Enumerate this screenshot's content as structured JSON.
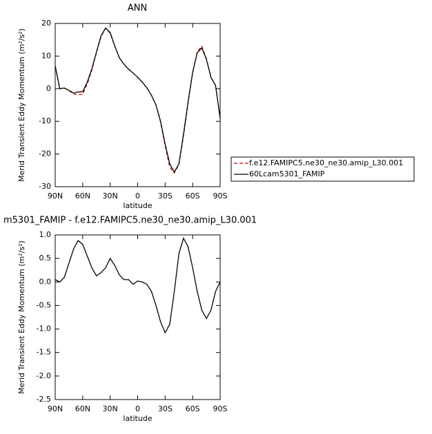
{
  "chart_data": [
    {
      "type": "line",
      "title": "ANN",
      "x_label": "latitude",
      "y_label": "Merid Transient Eddy Momentum (m²/s²)",
      "x": [
        90,
        85,
        80,
        75,
        70,
        65,
        60,
        55,
        50,
        45,
        40,
        35,
        30,
        25,
        20,
        15,
        10,
        5,
        0,
        -5,
        -10,
        -15,
        -20,
        -25,
        -30,
        -35,
        -40,
        -45,
        -50,
        -55,
        -60,
        -65,
        -70,
        -75,
        -80,
        -85,
        -90
      ],
      "series": [
        {
          "name": "f.e12.FAMIPC5.ne30_ne30.amip_L30.001",
          "color": "#cc0000",
          "line_style": "dashed",
          "values": [
            7,
            0,
            0.2,
            -0.6,
            -1.6,
            -1.8,
            -1.7,
            1.5,
            5.8,
            11,
            16,
            18.5,
            17,
            13,
            9.5,
            7.5,
            6,
            4.8,
            3.5,
            2,
            0.3,
            -2,
            -5,
            -10.3,
            -17.5,
            -24,
            -25.8,
            -23.2,
            -14.5,
            -4.5,
            5,
            11.3,
            13,
            9.2,
            3.5,
            1,
            -9
          ]
        },
        {
          "name": "60Lcam5301_FAMIP",
          "color": "#000000",
          "line_style": "solid",
          "values": [
            7,
            0,
            0.2,
            -0.5,
            -1.3,
            -1,
            -0.9,
            2,
            6.1,
            11.2,
            16.2,
            18.6,
            17.2,
            13.1,
            9.5,
            7.5,
            6,
            4.8,
            3.5,
            2,
            0.3,
            -2,
            -5,
            -10,
            -17,
            -23,
            -25.5,
            -23,
            -14,
            -4,
            5,
            11,
            12.5,
            9,
            3.5,
            1,
            -9
          ]
        }
      ],
      "xlim": [
        90,
        -90
      ],
      "xticks": [
        {
          "value": 90,
          "label": "90N"
        },
        {
          "value": 60,
          "label": "60N"
        },
        {
          "value": 30,
          "label": "30N"
        },
        0,
        {
          "value": -30,
          "label": "30S"
        },
        {
          "value": -60,
          "label": "60S"
        },
        {
          "value": -90,
          "label": "90S"
        }
      ],
      "ylim": [
        -30,
        20
      ],
      "yticks": [
        20,
        10,
        0,
        -10,
        -20,
        -30
      ],
      "legend": "right"
    },
    {
      "type": "line",
      "title": "m5301_FAMIP - f.e12.FAMIPC5.ne30_ne30.amip_L30.001",
      "x_label": "latitude",
      "y_label": "Merid Transient Eddy Momentum (m²/s²)",
      "x": [
        90,
        85,
        80,
        75,
        70,
        65,
        60,
        55,
        50,
        45,
        40,
        35,
        30,
        25,
        20,
        15,
        10,
        5,
        0,
        -5,
        -10,
        -15,
        -20,
        -25,
        -30,
        -35,
        -40,
        -45,
        -50,
        -55,
        -60,
        -65,
        -70,
        -75,
        -80,
        -85,
        -90
      ],
      "series": [
        {
          "color": "#000000",
          "line_style": "solid",
          "values": [
            0.05,
            0,
            0.1,
            0.4,
            0.7,
            0.88,
            0.8,
            0.55,
            0.3,
            0.13,
            0.2,
            0.3,
            0.5,
            0.35,
            0.15,
            0.05,
            0.05,
            -0.05,
            0.02,
            0,
            -0.05,
            -0.2,
            -0.5,
            -0.85,
            -1.08,
            -0.9,
            -0.2,
            0.6,
            0.93,
            0.75,
            0.3,
            -0.2,
            -0.6,
            -0.78,
            -0.6,
            -0.2,
            0
          ]
        }
      ],
      "xlim": [
        90,
        -90
      ],
      "xticks": [
        {
          "value": 90,
          "label": "90N"
        },
        {
          "value": 60,
          "label": "60N"
        },
        {
          "value": 30,
          "label": "30N"
        },
        0,
        {
          "value": -30,
          "label": "30S"
        },
        {
          "value": -60,
          "label": "60S"
        },
        {
          "value": -90,
          "label": "90S"
        }
      ],
      "ylim": [
        -2.5,
        1
      ],
      "yticks": [
        {
          "value": 1,
          "label": "1.0"
        },
        0.5,
        {
          "value": 0,
          "label": "0.0"
        },
        -0.5,
        {
          "value": -1,
          "label": "-1.0"
        },
        -1.5,
        {
          "value": -2,
          "label": "-2.0"
        },
        -2.5
      ]
    }
  ]
}
